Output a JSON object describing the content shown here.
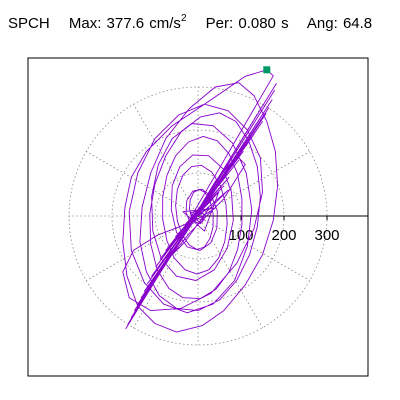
{
  "header": {
    "station": "SPCH",
    "max_label": "Max:",
    "max_value": "377.6",
    "max_unit_base": "cm/s",
    "max_unit_exp": "2",
    "per_label": "Per:",
    "per_value": "0.080 s",
    "ang_label": "Ang:",
    "ang_value": "64.8"
  },
  "chart_data": {
    "type": "line",
    "title": "SPCH   Max: 377.6 cm/s2   Per: 0.080 s   Ang: 64.8",
    "xlabel": "",
    "ylabel": "",
    "polar_grid": {
      "rings": [
        100,
        200,
        300
      ],
      "ring_labels": [
        "100",
        "200",
        "300"
      ],
      "spokes_deg": [
        0,
        30,
        60,
        90,
        120,
        150,
        180,
        210,
        240,
        270,
        300,
        330
      ],
      "style": "dotted"
    },
    "axis_range": [
      -400,
      400
    ],
    "max_marker": {
      "x": 160,
      "y": 340,
      "color": "#009966"
    },
    "series": [
      {
        "color": "#8800cc",
        "points": [
          [
            0,
            0
          ],
          [
            10,
            6
          ],
          [
            -8,
            12
          ],
          [
            15,
            -9
          ],
          [
            -12,
            -4
          ],
          [
            20,
            15
          ],
          [
            -18,
            8
          ],
          [
            6,
            -18
          ],
          [
            25,
            20
          ],
          [
            -22,
            -14
          ],
          [
            35,
            40
          ],
          [
            -30,
            -25
          ],
          [
            40,
            18
          ],
          [
            -35,
            10
          ],
          [
            15,
            -35
          ],
          [
            48,
            55
          ],
          [
            -42,
            -38
          ],
          [
            60,
            70
          ],
          [
            -52,
            -48
          ],
          [
            72,
            90
          ],
          [
            -60,
            -62
          ],
          [
            80,
            118
          ],
          [
            -75,
            -80
          ],
          [
            95,
            130
          ],
          [
            -88,
            -100
          ],
          [
            105,
            150
          ],
          [
            -98,
            -118
          ],
          [
            118,
            172
          ],
          [
            -108,
            -140
          ],
          [
            130,
            190
          ],
          [
            -118,
            -158
          ],
          [
            140,
            205
          ],
          [
            -125,
            -175
          ],
          [
            150,
            220
          ],
          [
            -132,
            -190
          ],
          [
            158,
            238
          ],
          [
            -140,
            -205
          ],
          [
            165,
            252
          ],
          [
            -148,
            -220
          ],
          [
            172,
            270
          ],
          [
            -155,
            -236
          ],
          [
            178,
            292
          ],
          [
            -162,
            -250
          ],
          [
            182,
            308
          ],
          [
            -168,
            -262
          ],
          [
            175,
            326
          ],
          [
            160,
            340
          ],
          [
            110,
            325
          ],
          [
            30,
            270
          ],
          [
            -60,
            210
          ],
          [
            -120,
            150
          ],
          [
            -155,
            90
          ],
          [
            -170,
            20
          ],
          [
            -175,
            -60
          ],
          [
            -165,
            -140
          ],
          [
            -140,
            -210
          ],
          [
            -100,
            -250
          ],
          [
            -50,
            -270
          ],
          [
            10,
            -255
          ],
          [
            60,
            -220
          ],
          [
            110,
            -160
          ],
          [
            150,
            -90
          ],
          [
            175,
            -10
          ],
          [
            185,
            70
          ],
          [
            180,
            150
          ],
          [
            160,
            220
          ],
          [
            130,
            280
          ],
          [
            95,
            310
          ],
          [
            40,
            300
          ],
          [
            -20,
            250
          ],
          [
            -75,
            180
          ],
          [
            -110,
            100
          ],
          [
            -130,
            20
          ],
          [
            -135,
            -60
          ],
          [
            -120,
            -130
          ],
          [
            -90,
            -185
          ],
          [
            -50,
            -215
          ],
          [
            0,
            -220
          ],
          [
            50,
            -195
          ],
          [
            90,
            -150
          ],
          [
            120,
            -90
          ],
          [
            138,
            -25
          ],
          [
            145,
            45
          ],
          [
            138,
            115
          ],
          [
            118,
            175
          ],
          [
            88,
            220
          ],
          [
            50,
            240
          ],
          [
            5,
            230
          ],
          [
            -40,
            195
          ],
          [
            -75,
            140
          ],
          [
            -100,
            75
          ],
          [
            -112,
            5
          ],
          [
            -110,
            -65
          ],
          [
            -95,
            -125
          ],
          [
            -68,
            -168
          ],
          [
            -35,
            -190
          ],
          [
            5,
            -192
          ],
          [
            42,
            -170
          ],
          [
            72,
            -130
          ],
          [
            92,
            -78
          ],
          [
            102,
            -20
          ],
          [
            102,
            40
          ],
          [
            92,
            98
          ],
          [
            72,
            145
          ],
          [
            45,
            175
          ],
          [
            12,
            185
          ],
          [
            -22,
            172
          ],
          [
            -52,
            140
          ],
          [
            -72,
            95
          ],
          [
            -82,
            45
          ],
          [
            -82,
            -8
          ],
          [
            -72,
            -58
          ],
          [
            -55,
            -98
          ],
          [
            -30,
            -125
          ],
          [
            -2,
            -135
          ],
          [
            25,
            -125
          ],
          [
            48,
            -98
          ],
          [
            62,
            -60
          ],
          [
            68,
            -18
          ],
          [
            65,
            28
          ],
          [
            52,
            70
          ],
          [
            32,
            102
          ],
          [
            8,
            118
          ],
          [
            -15,
            115
          ],
          [
            -35,
            95
          ],
          [
            -48,
            62
          ],
          [
            -52,
            25
          ],
          [
            -48,
            -12
          ],
          [
            -36,
            -45
          ],
          [
            -20,
            -68
          ],
          [
            -2,
            -78
          ],
          [
            15,
            -72
          ],
          [
            28,
            -52
          ],
          [
            35,
            -25
          ],
          [
            35,
            5
          ],
          [
            28,
            35
          ],
          [
            16,
            55
          ],
          [
            2,
            62
          ],
          [
            -10,
            55
          ],
          [
            -18,
            38
          ],
          [
            -20,
            18
          ],
          [
            -16,
            0
          ],
          [
            -8,
            -12
          ],
          [
            2,
            -18
          ],
          [
            10,
            -14
          ],
          [
            14,
            -5
          ],
          [
            12,
            6
          ],
          [
            6,
            12
          ],
          [
            -2,
            12
          ],
          [
            -6,
            6
          ],
          [
            -30,
            -20
          ],
          [
            -95,
            -45
          ],
          [
            -150,
            -80
          ],
          [
            -175,
            -130
          ],
          [
            -160,
            -190
          ],
          [
            -110,
            -220
          ],
          [
            -40,
            -215
          ],
          [
            30,
            -180
          ],
          [
            90,
            -110
          ],
          [
            130,
            -30
          ],
          [
            150,
            55
          ],
          [
            145,
            135
          ],
          [
            115,
            200
          ],
          [
            70,
            245
          ],
          [
            15,
            260
          ],
          [
            -45,
            235
          ],
          [
            -100,
            180
          ],
          [
            -140,
            100
          ],
          [
            -160,
            10
          ],
          [
            -155,
            -80
          ],
          [
            -125,
            -155
          ],
          [
            -80,
            -205
          ],
          [
            -25,
            -225
          ],
          [
            35,
            -205
          ],
          [
            85,
            -150
          ],
          [
            115,
            -70
          ],
          [
            125,
            15
          ],
          [
            112,
            100
          ],
          [
            80,
            170
          ],
          [
            35,
            210
          ],
          [
            -15,
            215
          ],
          [
            -60,
            180
          ],
          [
            -92,
            120
          ],
          [
            -108,
            45
          ],
          [
            -105,
            -35
          ],
          [
            -85,
            -100
          ],
          [
            -50,
            -140
          ],
          [
            -5,
            -150
          ],
          [
            38,
            -125
          ],
          [
            68,
            -75
          ],
          [
            82,
            -10
          ],
          [
            78,
            55
          ],
          [
            58,
            110
          ],
          [
            25,
            140
          ],
          [
            -12,
            142
          ],
          [
            -42,
            115
          ],
          [
            -60,
            70
          ],
          [
            -62,
            15
          ],
          [
            -50,
            -38
          ],
          [
            -25,
            -72
          ],
          [
            5,
            -80
          ],
          [
            30,
            -62
          ],
          [
            44,
            -28
          ],
          [
            45,
            12
          ],
          [
            32,
            45
          ],
          [
            10,
            62
          ],
          [
            -12,
            58
          ],
          [
            -26,
            36
          ],
          [
            -28,
            8
          ],
          [
            -18,
            -16
          ],
          [
            40,
            80
          ],
          [
            90,
            140
          ],
          [
            110,
            120
          ],
          [
            60,
            40
          ],
          [
            -20,
            -40
          ],
          [
            -60,
            -90
          ],
          [
            -30,
            -60
          ],
          [
            20,
            10
          ],
          [
            70,
            60
          ],
          [
            0,
            0
          ]
        ]
      }
    ]
  }
}
